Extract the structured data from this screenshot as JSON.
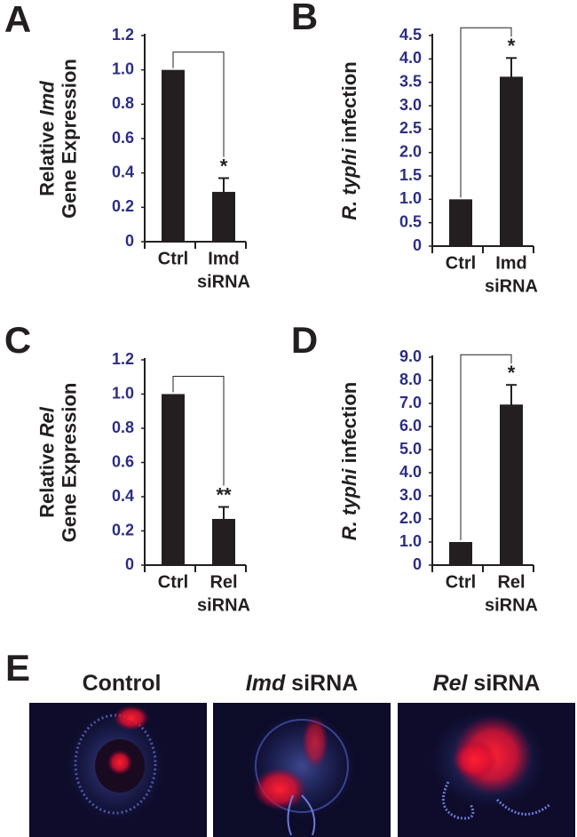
{
  "chart_data": [
    {
      "type": "bar",
      "panel": "A",
      "ylabel_lines": [
        [
          {
            "text": "Relative ",
            "italic": false
          },
          {
            "text": "Imd",
            "italic": true
          }
        ],
        [
          {
            "text": "Gene Expression",
            "italic": false
          }
        ]
      ],
      "categories": [
        [
          "Ctrl"
        ],
        [
          "Imd",
          "siRNA"
        ]
      ],
      "values": [
        1.0,
        0.29
      ],
      "errors": [
        null,
        0.08
      ],
      "significance": "*",
      "color": "#231f20",
      "ylim": [
        0,
        1.2
      ],
      "yticks": [
        0,
        0.2,
        0.4,
        0.6,
        0.8,
        {
          "value": 1.0,
          "label": "1.0"
        },
        1.2
      ]
    },
    {
      "type": "bar",
      "panel": "B",
      "ylabel_lines": [
        [
          {
            "text": "R. typhi",
            "italic": true
          },
          {
            "text": " infection",
            "italic": false
          }
        ]
      ],
      "categories": [
        [
          "Ctrl"
        ],
        [
          "Imd",
          "siRNA"
        ]
      ],
      "values": [
        1.0,
        3.62
      ],
      "errors": [
        null,
        0.4
      ],
      "significance": "*",
      "color": "#231f20",
      "ylim": [
        0,
        4.5
      ],
      "yticks": [
        0,
        0.5,
        {
          "value": 1.0,
          "label": "1.0"
        },
        1.5,
        {
          "value": 2.0,
          "label": "2.0"
        },
        2.5,
        {
          "value": 3.0,
          "label": "3.0"
        },
        3.5,
        {
          "value": 4.0,
          "label": "4.0"
        },
        4.5
      ]
    },
    {
      "type": "bar",
      "panel": "C",
      "ylabel_lines": [
        [
          {
            "text": "Relative ",
            "italic": false
          },
          {
            "text": "Rel",
            "italic": true
          }
        ],
        [
          {
            "text": "Gene Expression",
            "italic": false
          }
        ]
      ],
      "categories": [
        [
          "Ctrl"
        ],
        [
          "Rel",
          "siRNA"
        ]
      ],
      "values": [
        1.0,
        0.27
      ],
      "errors": [
        null,
        0.07
      ],
      "significance": "**",
      "color": "#231f20",
      "ylim": [
        0,
        1.2
      ],
      "yticks": [
        0,
        0.2,
        0.4,
        0.6,
        0.8,
        {
          "value": 1.0,
          "label": "1.0"
        },
        1.2
      ]
    },
    {
      "type": "bar",
      "panel": "D",
      "ylabel_lines": [
        [
          {
            "text": "R. typhi",
            "italic": true
          },
          {
            "text": " infection",
            "italic": false
          }
        ]
      ],
      "categories": [
        [
          "Ctrl"
        ],
        [
          "Rel",
          "siRNA"
        ]
      ],
      "values": [
        1.0,
        6.95
      ],
      "errors": [
        null,
        0.85
      ],
      "significance": "*",
      "color": "#231f20",
      "ylim": [
        0,
        9.0
      ],
      "yticks": [
        0,
        {
          "value": 1.0,
          "label": "1.0"
        },
        {
          "value": 2.0,
          "label": "2.0"
        },
        {
          "value": 3.0,
          "label": "3.0"
        },
        {
          "value": 4.0,
          "label": "4.0"
        },
        {
          "value": 5.0,
          "label": "5.0"
        },
        {
          "value": 6.0,
          "label": "6.0"
        },
        {
          "value": 7.0,
          "label": "7.0"
        },
        {
          "value": 8.0,
          "label": "8.0"
        },
        {
          "value": 9.0,
          "label": "9.0"
        }
      ]
    }
  ],
  "images_panel": {
    "panel": "E",
    "titles": [
      [
        {
          "text": "Control",
          "italic": false
        }
      ],
      [
        {
          "text": "Imd",
          "italic": true
        },
        {
          "text": " siRNA",
          "italic": false
        }
      ],
      [
        {
          "text": "Rel",
          "italic": true
        },
        {
          "text": " siRNA",
          "italic": false
        }
      ]
    ]
  }
}
